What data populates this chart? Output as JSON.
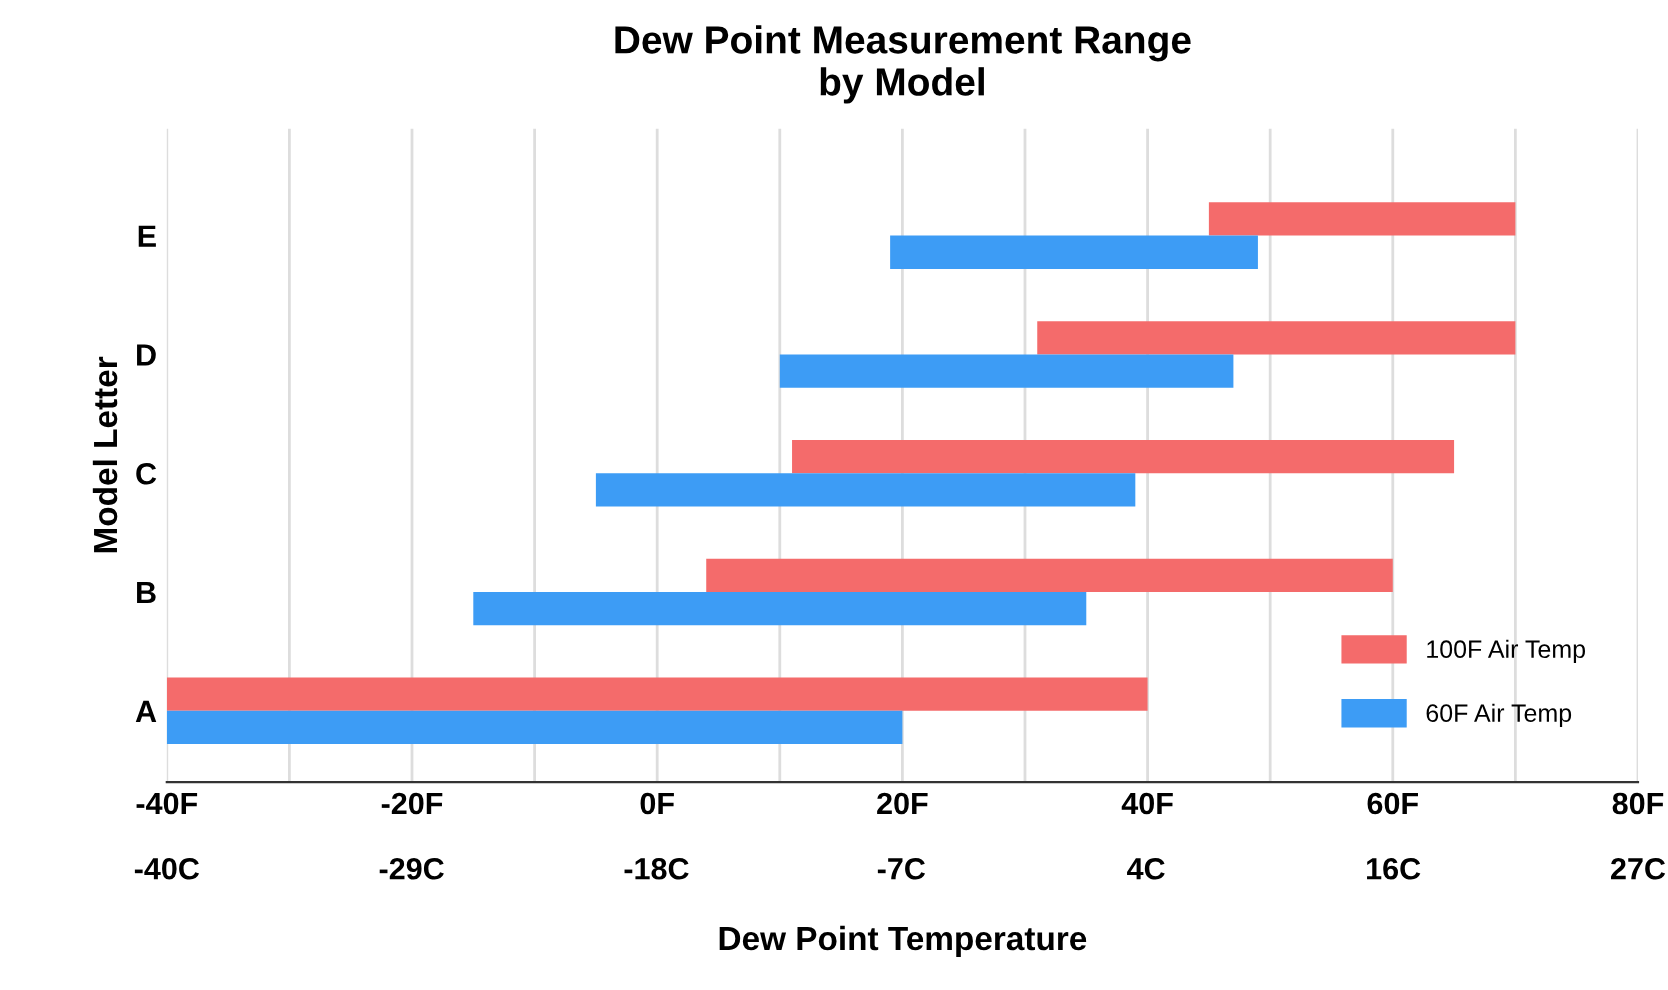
{
  "chart_data": {
    "type": "bar",
    "orientation": "horizontal",
    "title": "Dew Point Measurement Range\nby Model",
    "xlabel": "Dew Point Temperature",
    "ylabel": "Model Letter",
    "categories": [
      "E",
      "D",
      "C",
      "B",
      "A"
    ],
    "series": [
      {
        "name": "100F Air Temp",
        "color": "#f46b6b",
        "base": [
          45,
          31,
          11,
          4,
          -40
        ],
        "values": [
          25,
          39,
          54,
          56,
          80
        ]
      },
      {
        "name": "60F Air Temp",
        "color": "#3d9cf5",
        "base": [
          19,
          10,
          -5,
          -15,
          -40
        ],
        "values": [
          30,
          37,
          44,
          50,
          60
        ]
      }
    ],
    "xlim": [
      -40,
      80
    ],
    "xticks": [
      {
        "value": -40,
        "label": "-40F"
      },
      {
        "value": -30,
        "label": null
      },
      {
        "value": -20,
        "label": "-20F"
      },
      {
        "value": -10,
        "label": null
      },
      {
        "value": 0,
        "label": "0F"
      },
      {
        "value": 10,
        "label": null
      },
      {
        "value": 20,
        "label": "20F"
      },
      {
        "value": 30,
        "label": null
      },
      {
        "value": 40,
        "label": "40F"
      },
      {
        "value": 50,
        "label": null
      },
      {
        "value": 60,
        "label": "60F"
      },
      {
        "value": 70,
        "label": null
      },
      {
        "value": 80,
        "label": "80F"
      }
    ],
    "x2lim": [
      -40,
      26.7
    ],
    "x2ticks": [
      {
        "value": -40,
        "label": "-40C"
      },
      {
        "value": -28.9,
        "label": "-29C"
      },
      {
        "value": -17.8,
        "label": "-18C"
      },
      {
        "value": -6.7,
        "label": "-7C"
      },
      {
        "value": 4.4,
        "label": "4C"
      },
      {
        "value": 15.6,
        "label": "16C"
      },
      {
        "value": 26.7,
        "label": "27C"
      }
    ],
    "grid": "x",
    "legend": "bottom right"
  }
}
